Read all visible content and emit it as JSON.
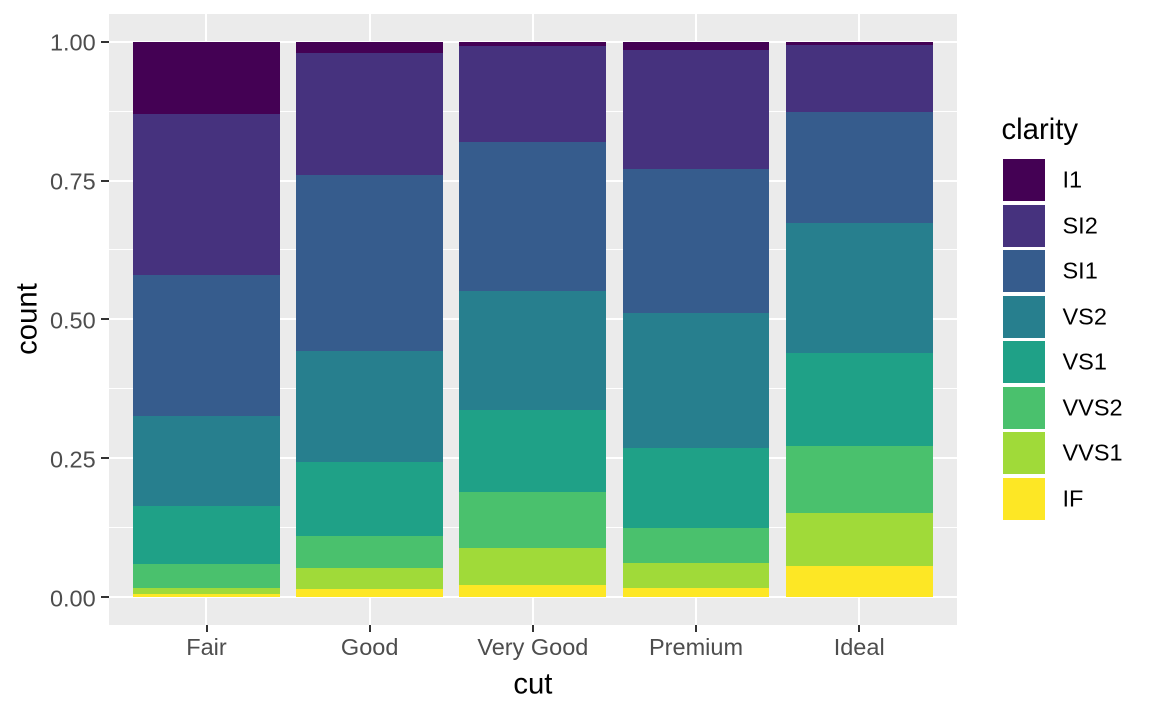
{
  "chart_data": {
    "type": "bar",
    "stacking": "fill",
    "orientation": "vertical",
    "xlabel": "cut",
    "ylabel": "count",
    "categories": [
      "Fair",
      "Good",
      "Very Good",
      "Premium",
      "Ideal"
    ],
    "y_ticks": [
      {
        "value": 0.0,
        "label": "0.00"
      },
      {
        "value": 0.25,
        "label": "0.25"
      },
      {
        "value": 0.5,
        "label": "0.50"
      },
      {
        "value": 0.75,
        "label": "0.75"
      },
      {
        "value": 1.0,
        "label": "1.00"
      }
    ],
    "y_minor_ticks": [
      0.125,
      0.375,
      0.625,
      0.875
    ],
    "ylim": [
      0,
      1
    ],
    "grid": "on",
    "legend": {
      "title": "clarity",
      "position": "right"
    },
    "series": [
      {
        "name": "I1",
        "color": "#440154",
        "values": [
          0.1304,
          0.0196,
          0.007,
          0.0149,
          0.0068
        ]
      },
      {
        "name": "SI2",
        "color": "#46327e",
        "values": [
          0.2894,
          0.2203,
          0.1738,
          0.2138,
          0.1206
        ]
      },
      {
        "name": "SI1",
        "color": "#365c8d",
        "values": [
          0.2534,
          0.318,
          0.2682,
          0.2592,
          0.1987
        ]
      },
      {
        "name": "VS2",
        "color": "#277f8e",
        "values": [
          0.1621,
          0.1994,
          0.2144,
          0.2434,
          0.2353
        ]
      },
      {
        "name": "VS1",
        "color": "#1fa187",
        "values": [
          0.1056,
          0.1321,
          0.1469,
          0.1442,
          0.1665
        ]
      },
      {
        "name": "VVS2",
        "color": "#4ac16d",
        "values": [
          0.0429,
          0.0583,
          0.1022,
          0.0631,
          0.1209
        ]
      },
      {
        "name": "VVS1",
        "color": "#a0da39",
        "values": [
          0.0106,
          0.0379,
          0.0653,
          0.0447,
          0.095
        ]
      },
      {
        "name": "IF",
        "color": "#fde725",
        "values": [
          0.0056,
          0.0145,
          0.0222,
          0.0167,
          0.0562
        ]
      }
    ],
    "stack_order_bottom_to_top": [
      "IF",
      "VVS1",
      "VVS2",
      "VS1",
      "VS2",
      "SI1",
      "SI2",
      "I1"
    ]
  },
  "colors": {
    "panel_background": "#ebebeb",
    "grid": "#ffffff",
    "axis_text": "#4d4d4d",
    "axis_title_text": "#000000",
    "tick_mark": "#333333",
    "figure_background": "#ffffff"
  }
}
